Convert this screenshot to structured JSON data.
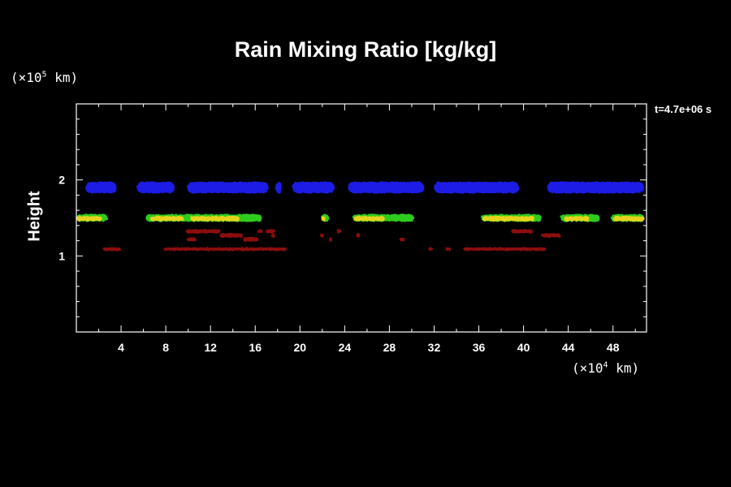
{
  "chart_data": {
    "type": "heatmap",
    "title": "Rain Mixing Ratio [kg/kg]",
    "xlabel": "",
    "ylabel": "Height",
    "x_unit": {
      "base": "(×10",
      "exp": "4",
      "suffix": " km)"
    },
    "y_unit": {
      "base": "(×10",
      "exp": "5",
      "suffix": " km)"
    },
    "annotation": "t=4.7e+06 s",
    "xlim": [
      0,
      51
    ],
    "ylim": [
      0,
      3
    ],
    "x_ticks": [
      4,
      8,
      12,
      16,
      20,
      24,
      28,
      32,
      36,
      40,
      44,
      48
    ],
    "y_ticks": [
      1,
      2
    ],
    "colors": {
      "blue": "#1e1ee6",
      "green": "#2ecc1e",
      "yellow": "#e6d21e",
      "orange": "#e07a14",
      "red": "#c81e1e",
      "dark_red": "#8c0a0a"
    },
    "layers": [
      {
        "level": "upper",
        "height": 1.9,
        "color": "blue",
        "segments": [
          [
            0.8,
            3.6
          ],
          [
            5.4,
            8.8
          ],
          [
            9.9,
            17.2
          ],
          [
            17.8,
            18.4
          ],
          [
            19.3,
            23.1
          ],
          [
            24.3,
            31.1
          ],
          [
            32.0,
            39.6
          ],
          [
            42.1,
            50.8
          ]
        ]
      },
      {
        "level": "middle",
        "height": 1.5,
        "color": "green",
        "segments": [
          [
            0.0,
            2.8
          ],
          [
            6.2,
            16.6
          ],
          [
            21.9,
            22.6
          ],
          [
            24.7,
            30.2
          ],
          [
            36.2,
            41.6
          ],
          [
            43.3,
            46.8
          ],
          [
            47.8,
            50.8
          ]
        ]
      },
      {
        "level": "middle-core",
        "height": 1.49,
        "color": "yellow",
        "segments": [
          [
            0.0,
            2.3
          ],
          [
            6.6,
            9.6
          ],
          [
            10.2,
            14.6
          ],
          [
            21.9,
            22.3
          ],
          [
            24.8,
            27.6
          ],
          [
            36.3,
            41.0
          ],
          [
            43.6,
            45.9
          ],
          [
            48.0,
            50.8
          ]
        ]
      },
      {
        "level": "lower",
        "height": 1.27,
        "color": "dark_red",
        "segments": [
          [
            9.8,
            12.9
          ],
          [
            13.3,
            14.4
          ],
          [
            14.9,
            15.8
          ],
          [
            16.2,
            16.7
          ],
          [
            17.4,
            17.8
          ],
          [
            9.9,
            10.7
          ],
          [
            11.2,
            12.4
          ],
          [
            12.8,
            14.9
          ],
          [
            15.3,
            16.3
          ],
          [
            16.9,
            17.8
          ],
          [
            21.8,
            22.1
          ],
          [
            22.6,
            22.9
          ],
          [
            23.3,
            23.7
          ],
          [
            25.0,
            25.4
          ],
          [
            28.9,
            29.4
          ],
          [
            38.9,
            40.8
          ],
          [
            41.6,
            43.3
          ]
        ]
      },
      {
        "level": "lowest",
        "height": 1.09,
        "color": "dark_red",
        "segments": [
          [
            2.4,
            4.0
          ],
          [
            7.8,
            18.8
          ],
          [
            31.5,
            31.9
          ],
          [
            33.0,
            33.5
          ],
          [
            34.6,
            42.0
          ],
          [
            37.4,
            39.8
          ]
        ]
      }
    ]
  }
}
